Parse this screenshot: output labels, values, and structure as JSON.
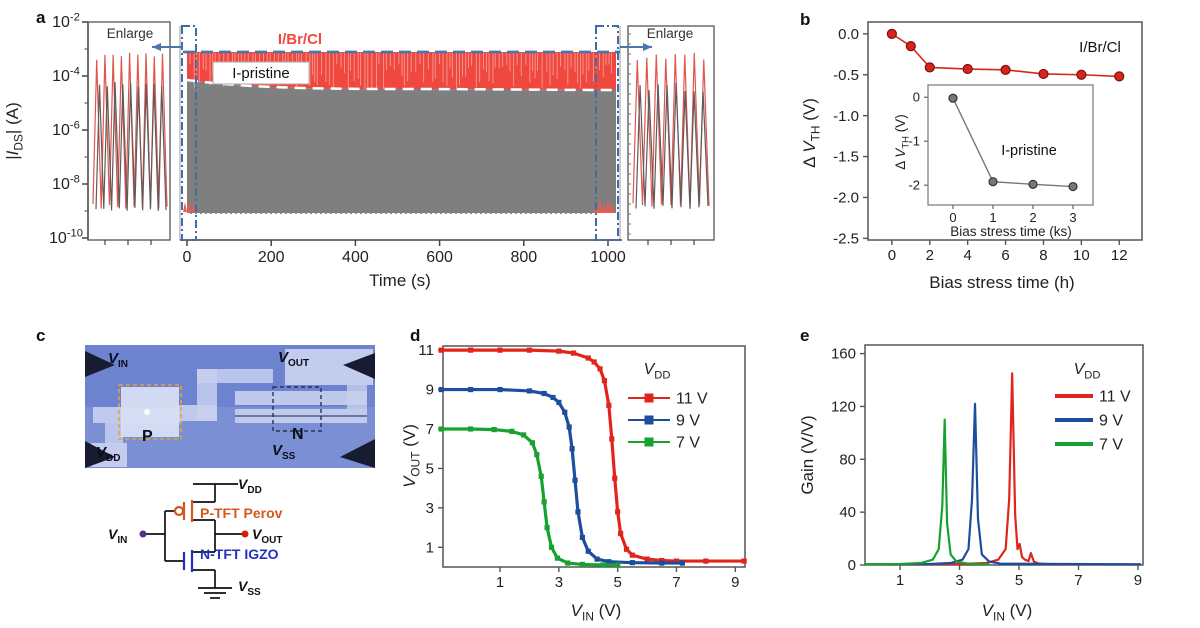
{
  "panels": {
    "a": {
      "letter": "a"
    },
    "b": {
      "letter": "b"
    },
    "c": {
      "letter": "c",
      "micrograph": {
        "vin": {
          "base": "V",
          "sub": "IN"
        },
        "vout": {
          "base": "V",
          "sub": "OUT"
        },
        "vdd": {
          "base": "V",
          "sub": "DD"
        },
        "vss": {
          "base": "V",
          "sub": "SS"
        },
        "p": "P",
        "n": "N",
        "colors": {
          "bg": "#6d83d0",
          "trace": "#c7d0ee",
          "pad": "#d8def4",
          "probe": "#181c30",
          "p_box": "#e8a13c",
          "n_box": "#26305a"
        }
      },
      "schematic": {
        "vdd": {
          "base": "V",
          "sub": "DD"
        },
        "vin": {
          "base": "V",
          "sub": "IN"
        },
        "vout": {
          "base": "V",
          "sub": "OUT"
        },
        "vss": {
          "base": "V",
          "sub": "SS"
        },
        "p_label": "P-TFT Perov",
        "n_label": "N-TFT IGZO",
        "p_color": "#d4581e",
        "n_color": "#2130c0",
        "in_dot_color": "#5a2c8f",
        "out_dot_color": "#cf2200"
      }
    },
    "d": {
      "letter": "d"
    },
    "e": {
      "letter": "e"
    }
  },
  "chart_data": [
    {
      "id": "a",
      "type": "area",
      "xlabel": "Time (s)",
      "ylabel_parts": [
        {
          "t": "|"
        },
        {
          "t": "I",
          "it": true
        },
        {
          "t": "DS",
          "sub": true
        },
        {
          "t": "| (A)"
        }
      ],
      "x_ticks": [
        0,
        200,
        400,
        600,
        800,
        1000
      ],
      "y_tick_exponents": [
        -2,
        -4,
        -6,
        -8,
        -10
      ],
      "y_scale": "log",
      "ylim_A": [
        1e-10,
        0.01
      ],
      "xlim_s": [
        0,
        1000
      ],
      "annotations": {
        "enlarge_left": "Enlarge",
        "enlarge_right": "Enlarge",
        "red_series": "I/Br/Cl",
        "gray_series": "I-pristine"
      },
      "regions": [
        {
          "name": "I/Br/Cl",
          "color": "#f0483f",
          "top_A": 0.0013,
          "bottom_A_start": 0.0001,
          "bottom_A_end": 6e-05
        },
        {
          "name": "I-pristine",
          "color": "#7f7f7f",
          "top_A_start": 0.0001,
          "top_A_end": 6e-05,
          "bottom_A": 2e-09
        }
      ],
      "oscillations": {
        "red_max_A": 0.001,
        "gray_max_A": 0.0001,
        "min_A": 2e-09,
        "red_color": "#e2544c",
        "gray_color": "#5c5c5c"
      },
      "overlay": {
        "blue_dash_color": "#4c74ad",
        "white_dash_color": "#ffffff",
        "zoom_box_color": "#3f6da8"
      }
    },
    {
      "id": "b",
      "type": "line",
      "xlabel": "Bias stress time (h)",
      "ylabel_parts": [
        {
          "t": "Δ "
        },
        {
          "t": "V",
          "it": true
        },
        {
          "t": "TH",
          "sub": true
        },
        {
          "t": " (V)"
        }
      ],
      "x_ticks": [
        0,
        2,
        4,
        6,
        8,
        10,
        12
      ],
      "y_ticks": [
        {
          "v": 0,
          "label": "0.0"
        },
        {
          "v": -0.5,
          "label": "-0.5"
        },
        {
          "v": -1,
          "label": "-1.0"
        },
        {
          "v": -1.5,
          "label": "-1.5"
        },
        {
          "v": -2,
          "label": "-2.0"
        },
        {
          "v": -2.5,
          "label": "-2.5"
        }
      ],
      "xlim": [
        -1.26,
        13.2
      ],
      "ylim": [
        -2.52,
        0.145
      ],
      "annotation": "I/Br/Cl",
      "series": [
        {
          "name": "I/Br/Cl",
          "color": "#d8251c",
          "edge": "#7d120e",
          "marker": "circle",
          "x": [
            0,
            1,
            2,
            4,
            6,
            8,
            10,
            12
          ],
          "y": [
            0,
            -0.15,
            -0.41,
            -0.43,
            -0.44,
            -0.49,
            -0.5,
            -0.52
          ]
        }
      ],
      "inset": {
        "xlabel": "Bias stress time (ks)",
        "ylabel_parts": [
          {
            "t": "Δ "
          },
          {
            "t": "V",
            "it": true
          },
          {
            "t": "TH",
            "sub": true
          },
          {
            "t": " (V)"
          }
        ],
        "x_ticks": [
          0,
          1,
          2,
          3
        ],
        "y_ticks": [
          {
            "v": 0,
            "label": "0"
          },
          {
            "v": -1,
            "label": "-1"
          },
          {
            "v": -2,
            "label": "-2"
          }
        ],
        "xlim": [
          -0.625,
          3.5
        ],
        "ylim": [
          -2.45,
          0.28
        ],
        "annotation": "I-pristine",
        "series": [
          {
            "name": "I-pristine",
            "color": "#777777",
            "edge": "#333333",
            "marker": "circle",
            "x": [
              0,
              1,
              2,
              3
            ],
            "y": [
              -0.02,
              -1.92,
              -1.98,
              -2.03
            ]
          }
        ]
      }
    },
    {
      "id": "d",
      "type": "line",
      "xlabel_parts": [
        {
          "t": "V",
          "it": true
        },
        {
          "t": "IN",
          "sub": true
        },
        {
          "t": " (V)"
        }
      ],
      "ylabel_parts": [
        {
          "t": "V",
          "it": true
        },
        {
          "t": "OUT",
          "sub": true
        },
        {
          "t": " (V)"
        }
      ],
      "x_ticks": [
        1,
        3,
        5,
        7,
        9
      ],
      "y_ticks": [
        {
          "v": 1,
          "label": "1"
        },
        {
          "v": 3,
          "label": "3"
        },
        {
          "v": 5,
          "label": "5"
        },
        {
          "v": 7,
          "label": "7"
        },
        {
          "v": 9,
          "label": "9"
        },
        {
          "v": 11,
          "label": "11"
        }
      ],
      "xlim": [
        -0.94,
        9.33
      ],
      "ylim": [
        0,
        11.21
      ],
      "legend": {
        "title_parts": [
          {
            "t": "V",
            "it": true
          },
          {
            "t": "DD",
            "sub": true
          }
        ],
        "style": "line+square"
      },
      "series": [
        {
          "name": "11 V",
          "color": "#e1251b",
          "marker": "square",
          "x": [
            -1,
            0,
            1,
            2,
            3,
            3.5,
            4,
            4.2,
            4.4,
            4.55,
            4.7,
            4.8,
            4.9,
            5,
            5.1,
            5.3,
            5.5,
            6,
            6.5,
            7,
            8,
            9.3
          ],
          "y": [
            11,
            11,
            11,
            11,
            10.95,
            10.85,
            10.6,
            10.4,
            10.05,
            9.45,
            8.2,
            6.5,
            4.5,
            2.8,
            1.7,
            0.9,
            0.6,
            0.4,
            0.33,
            0.3,
            0.3,
            0.3
          ]
        },
        {
          "name": "9 V",
          "color": "#1d4e9e",
          "marker": "square",
          "x": [
            -1,
            0,
            1,
            2,
            2.5,
            2.8,
            3,
            3.2,
            3.35,
            3.45,
            3.55,
            3.65,
            3.8,
            4,
            4.3,
            4.7,
            5.5,
            6.5,
            7.2
          ],
          "y": [
            9,
            9,
            9,
            8.93,
            8.8,
            8.6,
            8.35,
            7.85,
            7.1,
            6,
            4.4,
            2.8,
            1.5,
            0.8,
            0.4,
            0.27,
            0.22,
            0.2,
            0.2
          ]
        },
        {
          "name": "7 V",
          "color": "#17a22f",
          "marker": "square",
          "x": [
            -1,
            0,
            0.8,
            1.4,
            1.8,
            2.1,
            2.25,
            2.4,
            2.5,
            2.6,
            2.75,
            2.95,
            3.3,
            3.8,
            4.5,
            5
          ],
          "y": [
            7,
            7,
            6.97,
            6.88,
            6.7,
            6.3,
            5.7,
            4.6,
            3.3,
            2,
            1,
            0.45,
            0.2,
            0.13,
            0.1,
            0.1
          ]
        }
      ]
    },
    {
      "id": "e",
      "type": "line",
      "xlabel_parts": [
        {
          "t": "V",
          "it": true
        },
        {
          "t": "IN",
          "sub": true
        },
        {
          "t": " (V)"
        }
      ],
      "ylabel": "Gain (V/V)",
      "x_ticks": [
        1,
        3,
        5,
        7,
        9
      ],
      "y_ticks": [
        {
          "v": 0,
          "label": "0"
        },
        {
          "v": 40,
          "label": "40"
        },
        {
          "v": 80,
          "label": "80"
        },
        {
          "v": 120,
          "label": "120"
        },
        {
          "v": 160,
          "label": "160"
        }
      ],
      "xlim": [
        -0.18,
        9.17
      ],
      "ylim": [
        0,
        166.5
      ],
      "legend": {
        "title_parts": [
          {
            "t": "V",
            "it": true
          },
          {
            "t": "DD",
            "sub": true
          }
        ],
        "style": "line"
      },
      "series": [
        {
          "name": "11 V",
          "color": "#e1251b",
          "x": [
            -0.18,
            3,
            3.9,
            4.3,
            4.55,
            4.67,
            4.77,
            4.87,
            4.95,
            5.02,
            5.1,
            5.2,
            5.32,
            5.4,
            5.5,
            5.65,
            6,
            9.1
          ],
          "y": [
            0.5,
            0.8,
            1.5,
            4,
            12,
            50,
            145,
            38,
            12,
            16,
            6,
            4,
            3,
            9,
            2.5,
            1.2,
            0.6,
            0.5
          ]
        },
        {
          "name": "9 V",
          "color": "#1d4e9e",
          "x": [
            -0.18,
            2,
            2.7,
            3.1,
            3.3,
            3.42,
            3.52,
            3.62,
            3.75,
            4,
            4.4,
            9.1
          ],
          "y": [
            0.5,
            0.8,
            1.5,
            4,
            12,
            50,
            122,
            35,
            8,
            2.5,
            1,
            0.5
          ]
        },
        {
          "name": "7 V",
          "color": "#17a22f",
          "x": [
            -0.18,
            1,
            1.7,
            2.1,
            2.3,
            2.42,
            2.5,
            2.58,
            2.7,
            2.9,
            3.3,
            4
          ],
          "y": [
            0.5,
            0.8,
            1.5,
            4,
            12,
            45,
            110,
            32,
            8,
            2.5,
            1,
            0.5
          ]
        }
      ]
    }
  ]
}
